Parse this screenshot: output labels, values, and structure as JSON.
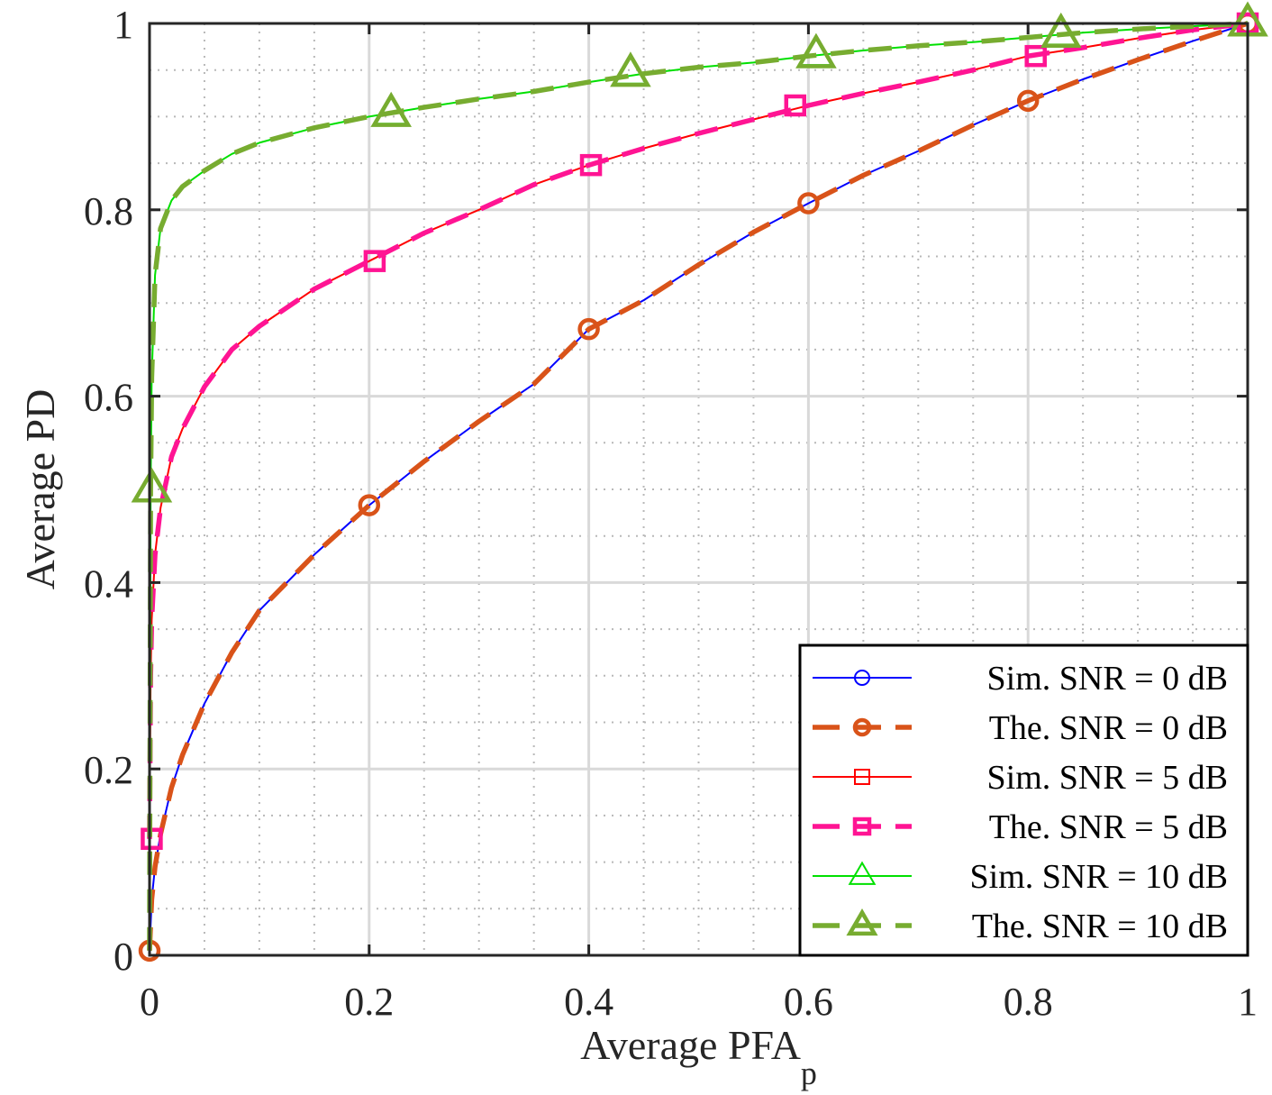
{
  "chart_data": {
    "type": "line",
    "xlabel": "Average PFA",
    "xlabel_subscript": "p",
    "ylabel": "Average PD",
    "xlim": [
      0,
      1
    ],
    "ylim": [
      0,
      1
    ],
    "x_ticks": [
      0,
      0.2,
      0.4,
      0.6,
      0.8,
      1
    ],
    "x_tick_labels": [
      "0",
      "0.2",
      "0.4",
      "0.6",
      "0.8",
      "1"
    ],
    "y_ticks": [
      0,
      0.2,
      0.4,
      0.6,
      0.8,
      1
    ],
    "y_tick_labels": [
      "0",
      "0.2",
      "0.4",
      "0.6",
      "0.8",
      "1"
    ],
    "grid": "on",
    "minor_grid": "on",
    "legend_position": "bottom-right",
    "series": [
      {
        "name": "Sim. SNR = 0 dB",
        "color": "#0000ff",
        "line_style": "solid",
        "marker": "circle",
        "x": [
          0,
          0.002,
          0.005,
          0.01,
          0.02,
          0.03,
          0.05,
          0.075,
          0.1,
          0.15,
          0.2,
          0.25,
          0.3,
          0.35,
          0.4,
          0.45,
          0.5,
          0.55,
          0.6,
          0.65,
          0.7,
          0.75,
          0.8,
          0.85,
          0.9,
          0.95,
          1.0
        ],
        "y": [
          0.005,
          0.06,
          0.095,
          0.13,
          0.18,
          0.215,
          0.27,
          0.325,
          0.37,
          0.43,
          0.483,
          0.53,
          0.573,
          0.613,
          0.672,
          0.703,
          0.741,
          0.776,
          0.807,
          0.837,
          0.863,
          0.891,
          0.917,
          0.94,
          0.961,
          0.981,
          1.0
        ],
        "marker_x": [
          0.0,
          0.2,
          0.4,
          0.6,
          0.8,
          1.0
        ],
        "marker_y": [
          0.005,
          0.483,
          0.672,
          0.807,
          0.917,
          1.0
        ]
      },
      {
        "name": "The. SNR = 0 dB",
        "color": "#d95319",
        "line_style": "dashed",
        "marker": "circle",
        "x": [
          0,
          0.002,
          0.005,
          0.01,
          0.02,
          0.03,
          0.05,
          0.075,
          0.1,
          0.15,
          0.2,
          0.25,
          0.3,
          0.35,
          0.4,
          0.45,
          0.5,
          0.55,
          0.6,
          0.65,
          0.7,
          0.75,
          0.8,
          0.85,
          0.9,
          0.95,
          1.0
        ],
        "y": [
          0.005,
          0.06,
          0.095,
          0.13,
          0.18,
          0.215,
          0.27,
          0.325,
          0.37,
          0.43,
          0.483,
          0.53,
          0.573,
          0.613,
          0.672,
          0.703,
          0.741,
          0.776,
          0.807,
          0.837,
          0.863,
          0.891,
          0.917,
          0.94,
          0.961,
          0.981,
          1.0
        ],
        "marker_x": [
          0.0,
          0.2,
          0.4,
          0.6,
          0.8,
          1.0
        ],
        "marker_y": [
          0.005,
          0.483,
          0.672,
          0.807,
          0.917,
          1.0
        ]
      },
      {
        "name": "Sim. SNR = 5 dB",
        "color": "#ff0000",
        "line_style": "solid",
        "marker": "square",
        "x": [
          0,
          0.001,
          0.002,
          0.005,
          0.01,
          0.02,
          0.03,
          0.05,
          0.075,
          0.1,
          0.15,
          0.2,
          0.25,
          0.3,
          0.35,
          0.4,
          0.45,
          0.5,
          0.55,
          0.6,
          0.65,
          0.7,
          0.75,
          0.8,
          0.85,
          0.9,
          0.95,
          1.0
        ],
        "y": [
          0.125,
          0.3,
          0.36,
          0.43,
          0.48,
          0.535,
          0.565,
          0.61,
          0.65,
          0.675,
          0.715,
          0.745,
          0.775,
          0.8,
          0.827,
          0.848,
          0.866,
          0.882,
          0.897,
          0.912,
          0.925,
          0.937,
          0.95,
          0.965,
          0.974,
          0.984,
          0.993,
          1.0
        ],
        "marker_x": [
          0.002,
          0.205,
          0.402,
          0.588,
          0.807,
          1.0
        ],
        "marker_y": [
          0.125,
          0.745,
          0.848,
          0.912,
          0.965,
          1.0
        ]
      },
      {
        "name": "The. SNR = 5 dB",
        "color": "#ff1493",
        "line_style": "dashed",
        "marker": "square",
        "x": [
          0,
          0.001,
          0.002,
          0.005,
          0.01,
          0.02,
          0.03,
          0.05,
          0.075,
          0.1,
          0.15,
          0.2,
          0.25,
          0.3,
          0.35,
          0.4,
          0.45,
          0.5,
          0.55,
          0.6,
          0.65,
          0.7,
          0.75,
          0.8,
          0.85,
          0.9,
          0.95,
          1.0
        ],
        "y": [
          0.125,
          0.3,
          0.36,
          0.43,
          0.48,
          0.535,
          0.565,
          0.61,
          0.65,
          0.675,
          0.715,
          0.745,
          0.775,
          0.8,
          0.827,
          0.848,
          0.866,
          0.882,
          0.897,
          0.912,
          0.925,
          0.937,
          0.95,
          0.965,
          0.974,
          0.984,
          0.993,
          1.0
        ],
        "marker_x": [
          0.002,
          0.205,
          0.402,
          0.588,
          0.807,
          1.0
        ],
        "marker_y": [
          0.125,
          0.745,
          0.848,
          0.912,
          0.965,
          1.0
        ]
      },
      {
        "name": "Sim. SNR = 10 dB",
        "color": "#00e000",
        "line_style": "solid",
        "marker": "triangle",
        "x": [
          0,
          0.001,
          0.002,
          0.005,
          0.01,
          0.02,
          0.03,
          0.05,
          0.075,
          0.1,
          0.15,
          0.2,
          0.25,
          0.3,
          0.35,
          0.4,
          0.45,
          0.5,
          0.55,
          0.6,
          0.65,
          0.7,
          0.75,
          0.8,
          0.85,
          0.9,
          0.95,
          1.0
        ],
        "y": [
          0.005,
          0.5,
          0.62,
          0.73,
          0.78,
          0.81,
          0.825,
          0.842,
          0.86,
          0.872,
          0.888,
          0.9,
          0.91,
          0.919,
          0.927,
          0.937,
          0.946,
          0.953,
          0.958,
          0.965,
          0.971,
          0.976,
          0.98,
          0.985,
          0.99,
          0.994,
          0.997,
          1.0
        ],
        "marker_x": [
          0.002,
          0.22,
          0.438,
          0.607,
          0.83,
          1.0
        ],
        "marker_y": [
          0.5,
          0.903,
          0.946,
          0.966,
          0.988,
          1.0
        ]
      },
      {
        "name": "The. SNR = 10 dB",
        "color": "#77ac30",
        "line_style": "dashed",
        "marker": "triangle",
        "x": [
          0,
          0.001,
          0.002,
          0.005,
          0.01,
          0.02,
          0.03,
          0.05,
          0.075,
          0.1,
          0.15,
          0.2,
          0.25,
          0.3,
          0.35,
          0.4,
          0.45,
          0.5,
          0.55,
          0.6,
          0.65,
          0.7,
          0.75,
          0.8,
          0.85,
          0.9,
          0.95,
          1.0
        ],
        "y": [
          0.005,
          0.5,
          0.62,
          0.73,
          0.78,
          0.81,
          0.825,
          0.842,
          0.86,
          0.872,
          0.888,
          0.9,
          0.91,
          0.919,
          0.927,
          0.937,
          0.946,
          0.953,
          0.958,
          0.965,
          0.971,
          0.976,
          0.98,
          0.985,
          0.99,
          0.994,
          0.997,
          1.0
        ],
        "marker_x": [
          0.002,
          0.22,
          0.438,
          0.607,
          0.83,
          1.0
        ],
        "marker_y": [
          0.5,
          0.903,
          0.946,
          0.966,
          0.988,
          1.0
        ]
      }
    ]
  }
}
